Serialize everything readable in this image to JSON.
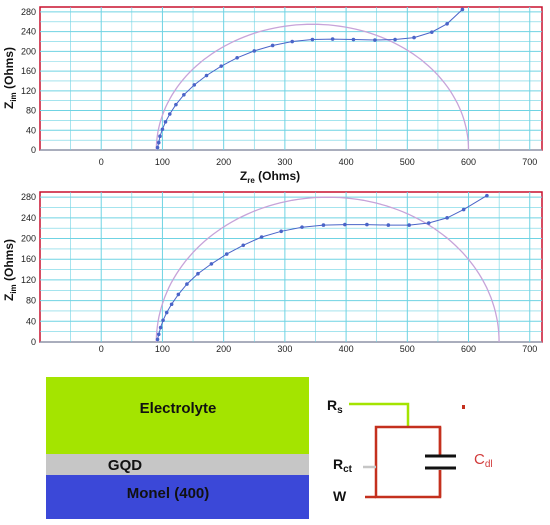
{
  "chart_data": [
    {
      "type": "scatter",
      "xlabel_main": "Z",
      "xlabel_sub": "re",
      "xlabel_unit": " (Ohms)",
      "ylabel_main": "Z",
      "ylabel_sub": "im",
      "ylabel_unit": " (Ohms)",
      "xlim": [
        -100,
        720
      ],
      "ylim": [
        0,
        290
      ],
      "xticks": [
        "0",
        "100",
        "200",
        "300",
        "400",
        "500",
        "600",
        "700"
      ],
      "yticks": [
        "0",
        "40",
        "80",
        "120",
        "160",
        "200",
        "240",
        "280"
      ],
      "grid": true,
      "measured": {
        "x": [
          92,
          94,
          96,
          100,
          105,
          112,
          122,
          135,
          152,
          172,
          196,
          222,
          250,
          280,
          312,
          345,
          378,
          412,
          447,
          480,
          511,
          540,
          565,
          590
        ],
        "y": [
          5,
          15,
          28,
          42,
          57,
          73,
          92,
          112,
          132,
          151,
          170,
          187,
          201,
          212,
          220,
          224,
          225,
          224,
          223,
          224,
          228,
          239,
          256,
          285
        ]
      },
      "fit_semicircle": {
        "x_start": 90,
        "x_end": 600
      }
    },
    {
      "type": "scatter",
      "xlabel_main": "Z",
      "xlabel_sub": "re",
      "xlabel_unit": " (Ohms)",
      "ylabel_main": "Z",
      "ylabel_sub": "im",
      "ylabel_unit": " (Ohms)",
      "xlim": [
        -100,
        720
      ],
      "ylim": [
        0,
        290
      ],
      "xticks": [
        "0",
        "100",
        "200",
        "300",
        "400",
        "500",
        "600",
        "700"
      ],
      "yticks": [
        "0",
        "40",
        "80",
        "120",
        "160",
        "200",
        "240",
        "280"
      ],
      "grid": true,
      "measured": {
        "x": [
          92,
          94,
          97,
          101,
          107,
          115,
          126,
          140,
          158,
          180,
          205,
          232,
          262,
          294,
          328,
          363,
          398,
          434,
          469,
          503,
          535,
          565,
          592,
          630
        ],
        "y": [
          5,
          15,
          28,
          42,
          57,
          73,
          92,
          112,
          132,
          151,
          170,
          187,
          203,
          214,
          222,
          226,
          227,
          227,
          226,
          226,
          230,
          240,
          256,
          283
        ]
      },
      "fit_semicircle": {
        "x_start": 90,
        "x_end": 650
      }
    }
  ],
  "colors": {
    "frame": "#c8102e",
    "grid": "#6fd3e3",
    "points": "#4a64c8",
    "fit": "#c7a3d9",
    "electrolyte": "#a4e400",
    "gqd": "#c6c6c6",
    "monel": "#3b48d8",
    "circuit_wire": "#c4301e",
    "rs_wire": "#a4e400",
    "rct_wire": "#c6c6c6",
    "cdl": "#d23b3b"
  },
  "diagram": {
    "electrolyte_label": "Electrolyte",
    "gqd_label": "GQD",
    "monel_label": "Monel (400)",
    "rs_main": "R",
    "rs_sub": "s",
    "rct_main": "R",
    "rct_sub": "ct",
    "w_label": "W",
    "cdl_main": "C",
    "cdl_sub": "dl"
  }
}
